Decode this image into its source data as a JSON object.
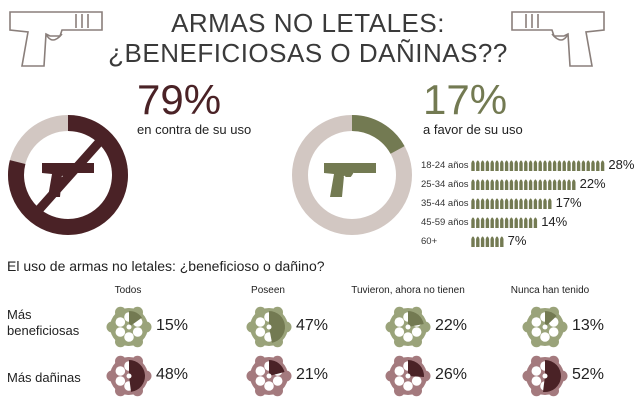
{
  "header": {
    "title_line1": "ARMAS NO LETALES:",
    "title_line2": "¿BENEFICIOSAS O DAÑINAS??"
  },
  "colors": {
    "against": "#4a2226",
    "favor": "#737a52",
    "gray": "#d2c7c2",
    "light_gray": "#e6dedb",
    "green_light": "#9aa37a",
    "maroon_light": "#a47a7e"
  },
  "icons": [
    "pistol-icon",
    "no-sign-icon",
    "bullet-icon",
    "revolver-cylinder-icon"
  ],
  "chart_data": [
    {
      "type": "donut",
      "value": 79,
      "value_label": "79%",
      "caption": "en contra de su uso"
    },
    {
      "type": "donut",
      "value": 17,
      "value_label": "17%",
      "caption": "a favor de su uso"
    },
    {
      "type": "bar",
      "categories": [
        "18-24 años",
        "25-34 años",
        "35-44 años",
        "45-59 años",
        "60+"
      ],
      "values": [
        28,
        22,
        17,
        14,
        7
      ],
      "value_labels": [
        "28%",
        "22%",
        "17%",
        "14%",
        "7%"
      ]
    },
    {
      "type": "pie",
      "title": "El uso de armas no letales: ¿beneficioso o dañino?",
      "categories": [
        "Todos",
        "Poseen",
        "Tuvieron, ahora no tienen",
        "Nunca han tenido"
      ],
      "series": [
        {
          "name": "Más beneficiosas",
          "values": [
            15,
            47,
            22,
            13
          ],
          "labels": [
            "15%",
            "47%",
            "22%",
            "13%"
          ]
        },
        {
          "name": "Más dañinas",
          "values": [
            48,
            21,
            26,
            52
          ],
          "labels": [
            "48%",
            "21%",
            "26%",
            "52%"
          ]
        }
      ]
    }
  ]
}
